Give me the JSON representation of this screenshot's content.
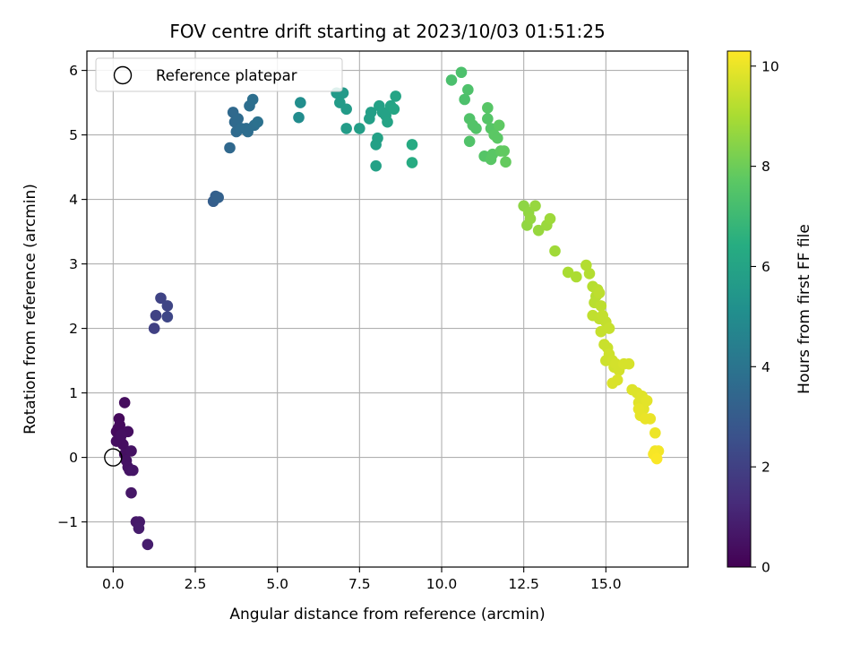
{
  "chart_data": {
    "type": "scatter",
    "title": "FOV centre drift starting at 2023/10/03 01:51:25",
    "xlabel": "Angular distance from reference (arcmin)",
    "ylabel": "Rotation from reference (arcmin)",
    "xlim": [
      -0.8,
      17.5
    ],
    "ylim": [
      -1.7,
      6.3
    ],
    "xticks": [
      0,
      2.5,
      5,
      7.5,
      10,
      12.5,
      15
    ],
    "xtick_labels": [
      "0.0",
      "2.5",
      "5.0",
      "7.5",
      "10.0",
      "12.5",
      "15.0"
    ],
    "yticks": [
      -1,
      0,
      1,
      2,
      3,
      4,
      5,
      6
    ],
    "ytick_labels": [
      "−1",
      "0",
      "1",
      "2",
      "3",
      "4",
      "5",
      "6"
    ],
    "grid": true,
    "legend": {
      "position": "upper-left",
      "entries": [
        {
          "label": "Reference platepar",
          "marker": "open-circle",
          "x": 0,
          "y": 0
        }
      ]
    },
    "colorbar": {
      "label": "Hours from first FF file",
      "colormap": "viridis",
      "range": [
        0,
        10.3
      ],
      "ticks": [
        0,
        2,
        4,
        6,
        8,
        10
      ],
      "tick_labels": [
        "0",
        "2",
        "4",
        "6",
        "8",
        "10"
      ]
    },
    "series": [
      {
        "fields": [
          "x",
          "y",
          "hours"
        ],
        "points": [
          [
            0.15,
            0.45,
            0.25
          ],
          [
            0.18,
            0.6,
            0.25
          ],
          [
            0.1,
            0.4,
            0.3
          ],
          [
            0.2,
            0.5,
            0.3
          ],
          [
            0.35,
            0.85,
            0.35
          ],
          [
            0.22,
            0.3,
            0.35
          ],
          [
            0.3,
            0.2,
            0.4
          ],
          [
            0.45,
            0.4,
            0.4
          ],
          [
            0.1,
            0.25,
            0.4
          ],
          [
            0.25,
            0.35,
            0.45
          ],
          [
            0.35,
            0.05,
            0.45
          ],
          [
            0.4,
            -0.05,
            0.5
          ],
          [
            0.55,
            0.1,
            0.5
          ],
          [
            0.45,
            -0.15,
            0.55
          ],
          [
            0.5,
            -0.2,
            0.55
          ],
          [
            0.6,
            -0.2,
            0.6
          ],
          [
            0.55,
            -0.55,
            0.65
          ],
          [
            0.7,
            -1.0,
            0.7
          ],
          [
            0.8,
            -1.0,
            0.75
          ],
          [
            0.78,
            -1.1,
            0.8
          ],
          [
            1.05,
            -1.35,
            0.85
          ],
          [
            1.25,
            2.0,
            2.0
          ],
          [
            1.3,
            2.2,
            2.05
          ],
          [
            1.45,
            2.47,
            2.1
          ],
          [
            1.65,
            2.35,
            2.15
          ],
          [
            1.65,
            2.18,
            2.2
          ],
          [
            3.05,
            3.97,
            3.1
          ],
          [
            3.12,
            4.05,
            3.15
          ],
          [
            3.2,
            4.03,
            3.2
          ],
          [
            3.55,
            4.8,
            3.5
          ],
          [
            3.65,
            5.35,
            3.55
          ],
          [
            3.7,
            5.2,
            3.55
          ],
          [
            3.8,
            5.25,
            3.6
          ],
          [
            3.75,
            5.05,
            3.6
          ],
          [
            3.9,
            5.1,
            3.65
          ],
          [
            4.05,
            5.1,
            3.7
          ],
          [
            4.1,
            5.05,
            3.7
          ],
          [
            4.15,
            5.45,
            3.75
          ],
          [
            4.25,
            5.55,
            3.8
          ],
          [
            4.3,
            5.15,
            3.8
          ],
          [
            4.4,
            5.2,
            3.85
          ],
          [
            5.65,
            5.27,
            5.0
          ],
          [
            5.7,
            5.5,
            5.05
          ],
          [
            6.8,
            5.65,
            5.6
          ],
          [
            7.0,
            5.65,
            5.6
          ],
          [
            6.9,
            5.5,
            5.65
          ],
          [
            7.1,
            5.4,
            5.65
          ],
          [
            7.1,
            5.1,
            5.7
          ],
          [
            7.5,
            5.1,
            5.75
          ],
          [
            7.8,
            5.25,
            5.8
          ],
          [
            7.85,
            5.35,
            5.8
          ],
          [
            8.0,
            4.85,
            5.85
          ],
          [
            8.05,
            4.95,
            5.85
          ],
          [
            8.0,
            4.52,
            5.9
          ],
          [
            8.1,
            5.45,
            5.9
          ],
          [
            8.2,
            5.35,
            5.95
          ],
          [
            8.3,
            5.3,
            5.95
          ],
          [
            8.35,
            5.2,
            6.0
          ],
          [
            8.45,
            5.45,
            6.05
          ],
          [
            8.6,
            5.6,
            6.05
          ],
          [
            8.55,
            5.4,
            6.1
          ],
          [
            9.1,
            4.85,
            6.3
          ],
          [
            9.1,
            4.57,
            6.35
          ],
          [
            10.3,
            5.85,
            7.3
          ],
          [
            10.6,
            5.97,
            7.35
          ],
          [
            10.7,
            5.55,
            7.35
          ],
          [
            10.8,
            5.7,
            7.4
          ],
          [
            10.85,
            5.25,
            7.45
          ],
          [
            10.85,
            4.9,
            7.45
          ],
          [
            10.95,
            5.15,
            7.5
          ],
          [
            11.05,
            5.1,
            7.5
          ],
          [
            11.3,
            4.67,
            7.55
          ],
          [
            11.4,
            5.25,
            7.55
          ],
          [
            11.4,
            5.42,
            7.6
          ],
          [
            11.5,
            5.1,
            7.6
          ],
          [
            11.5,
            4.62,
            7.65
          ],
          [
            11.55,
            4.7,
            7.65
          ],
          [
            11.6,
            5.0,
            7.7
          ],
          [
            11.7,
            4.95,
            7.7
          ],
          [
            11.75,
            5.15,
            7.75
          ],
          [
            11.8,
            4.75,
            7.75
          ],
          [
            11.9,
            4.75,
            7.8
          ],
          [
            11.95,
            4.58,
            7.85
          ],
          [
            12.5,
            3.9,
            8.55
          ],
          [
            12.6,
            3.6,
            8.6
          ],
          [
            12.65,
            3.8,
            8.6
          ],
          [
            12.7,
            3.7,
            8.65
          ],
          [
            12.85,
            3.9,
            8.7
          ],
          [
            12.95,
            3.52,
            8.7
          ],
          [
            13.2,
            3.6,
            8.75
          ],
          [
            13.3,
            3.7,
            8.8
          ],
          [
            13.45,
            3.2,
            8.85
          ],
          [
            13.85,
            2.87,
            9.0
          ],
          [
            14.1,
            2.8,
            9.05
          ],
          [
            14.4,
            2.98,
            9.15
          ],
          [
            14.5,
            2.85,
            9.15
          ],
          [
            14.6,
            2.65,
            9.2
          ],
          [
            14.7,
            2.5,
            9.2
          ],
          [
            14.65,
            2.4,
            9.25
          ],
          [
            14.75,
            2.6,
            9.25
          ],
          [
            14.8,
            2.55,
            9.3
          ],
          [
            14.85,
            2.35,
            9.3
          ],
          [
            14.6,
            2.2,
            9.35
          ],
          [
            14.8,
            2.15,
            9.35
          ],
          [
            14.9,
            2.2,
            9.4
          ],
          [
            15.0,
            2.1,
            9.4
          ],
          [
            15.1,
            2.0,
            9.45
          ],
          [
            14.85,
            1.95,
            9.45
          ],
          [
            14.95,
            1.75,
            9.5
          ],
          [
            15.05,
            1.7,
            9.5
          ],
          [
            15.1,
            1.6,
            9.55
          ],
          [
            15.0,
            1.5,
            9.55
          ],
          [
            15.2,
            1.5,
            9.6
          ],
          [
            15.25,
            1.4,
            9.6
          ],
          [
            15.3,
            1.45,
            9.65
          ],
          [
            15.4,
            1.35,
            9.65
          ],
          [
            15.55,
            1.45,
            9.7
          ],
          [
            15.7,
            1.45,
            9.7
          ],
          [
            15.35,
            1.2,
            9.75
          ],
          [
            15.2,
            1.15,
            9.75
          ],
          [
            15.8,
            1.05,
            9.8
          ],
          [
            15.95,
            1.0,
            9.8
          ],
          [
            16.1,
            0.95,
            9.85
          ],
          [
            16.0,
            0.85,
            9.85
          ],
          [
            16.15,
            0.75,
            9.9
          ],
          [
            16.25,
            0.88,
            9.9
          ],
          [
            16.0,
            0.75,
            9.95
          ],
          [
            16.05,
            0.65,
            9.95
          ],
          [
            16.2,
            0.6,
            10.0
          ],
          [
            16.35,
            0.6,
            10.0
          ],
          [
            16.5,
            0.38,
            10.05
          ],
          [
            16.5,
            0.1,
            10.1
          ],
          [
            16.6,
            0.1,
            10.15
          ],
          [
            16.45,
            0.05,
            10.2
          ],
          [
            16.55,
            -0.02,
            10.25
          ]
        ]
      }
    ],
    "reference_point": {
      "x": 0,
      "y": 0
    }
  }
}
